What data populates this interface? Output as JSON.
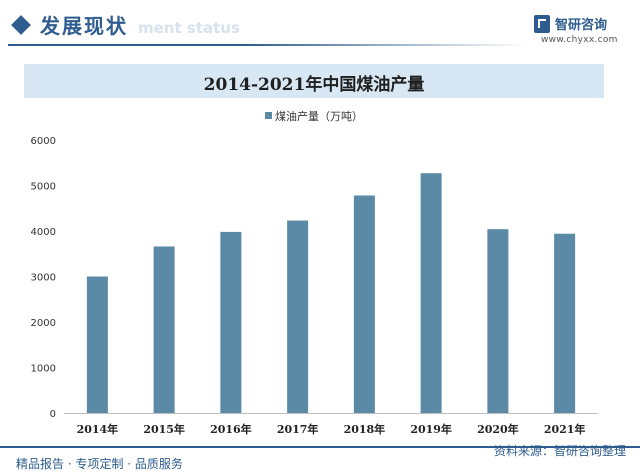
{
  "header": {
    "title": "发展现状",
    "ghost_text": "ment status",
    "icon": "diamond-icon"
  },
  "logo": {
    "name": "智研咨询",
    "url": "www.chyxx.com",
    "icon": "chyxx-logo-icon"
  },
  "footer": {
    "left_text": "精品报告 · 专项定制 · 品质服务",
    "source_text": "资料来源：智研咨询整理"
  },
  "colors": {
    "brand": "#2e5c8e",
    "bar": "#5b8aa6",
    "title_band": "#d7e7f3"
  },
  "chart_data": {
    "type": "bar",
    "title": "2014-2021年中国煤油产量",
    "categories": [
      "2014年",
      "2015年",
      "2016年",
      "2017年",
      "2018年",
      "2019年",
      "2020年",
      "2021年"
    ],
    "series": [
      {
        "name": "煤油产量（万吨）",
        "values": [
          3000,
          3660,
          3980,
          4230,
          4780,
          5270,
          4040,
          3940
        ]
      }
    ],
    "ylim": [
      0,
      6000
    ],
    "yticks": [
      0,
      1000,
      2000,
      3000,
      4000,
      5000,
      6000
    ],
    "legend_position": "top-center",
    "grid": false
  }
}
